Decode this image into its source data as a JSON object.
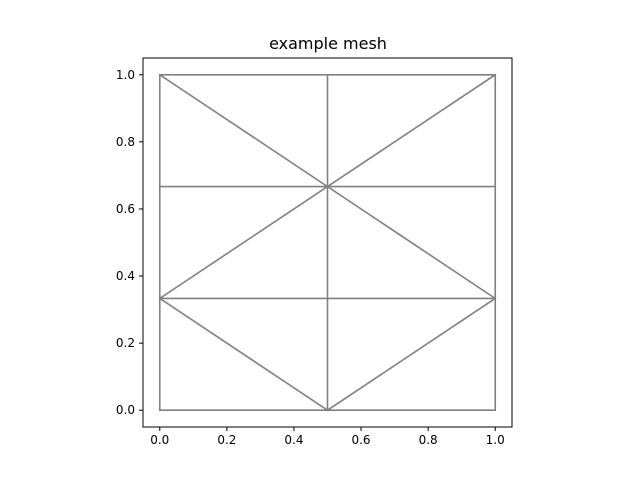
{
  "chart_data": {
    "type": "line",
    "title": "example mesh",
    "xlabel": "",
    "ylabel": "",
    "xlim": [
      -0.05,
      1.05
    ],
    "ylim": [
      -0.05,
      1.05
    ],
    "aspect": "equal",
    "grid": false,
    "legend": "none",
    "xticks": [
      {
        "value": 0.0,
        "label": "0.0"
      },
      {
        "value": 0.2,
        "label": "0.2"
      },
      {
        "value": 0.4,
        "label": "0.4"
      },
      {
        "value": 0.6,
        "label": "0.6"
      },
      {
        "value": 0.8,
        "label": "0.8"
      },
      {
        "value": 1.0,
        "label": "1.0"
      }
    ],
    "yticks": [
      {
        "value": 0.0,
        "label": "0.0"
      },
      {
        "value": 0.2,
        "label": "0.2"
      },
      {
        "value": 0.4,
        "label": "0.4"
      },
      {
        "value": 0.6,
        "label": "0.6"
      },
      {
        "value": 0.8,
        "label": "0.8"
      },
      {
        "value": 1.0,
        "label": "1.0"
      }
    ],
    "line_color": "#808080",
    "segments": [
      [
        [
          0.0,
          0.0
        ],
        [
          0.0,
          1.0
        ]
      ],
      [
        [
          1.0,
          0.0
        ],
        [
          1.0,
          1.0
        ]
      ],
      [
        [
          0.5,
          0.0
        ],
        [
          0.5,
          1.0
        ]
      ],
      [
        [
          0.0,
          0.0
        ],
        [
          1.0,
          0.0
        ]
      ],
      [
        [
          0.0,
          1.0
        ],
        [
          1.0,
          1.0
        ]
      ],
      [
        [
          0.0,
          0.3333
        ],
        [
          1.0,
          0.3333
        ]
      ],
      [
        [
          0.0,
          0.6667
        ],
        [
          1.0,
          0.6667
        ]
      ],
      [
        [
          0.0,
          1.0
        ],
        [
          1.0,
          0.3333
        ]
      ],
      [
        [
          1.0,
          1.0
        ],
        [
          0.0,
          0.3333
        ]
      ],
      [
        [
          0.0,
          0.3333
        ],
        [
          0.5,
          0.0
        ]
      ],
      [
        [
          0.5,
          0.0
        ],
        [
          1.0,
          0.3333
        ]
      ]
    ]
  }
}
